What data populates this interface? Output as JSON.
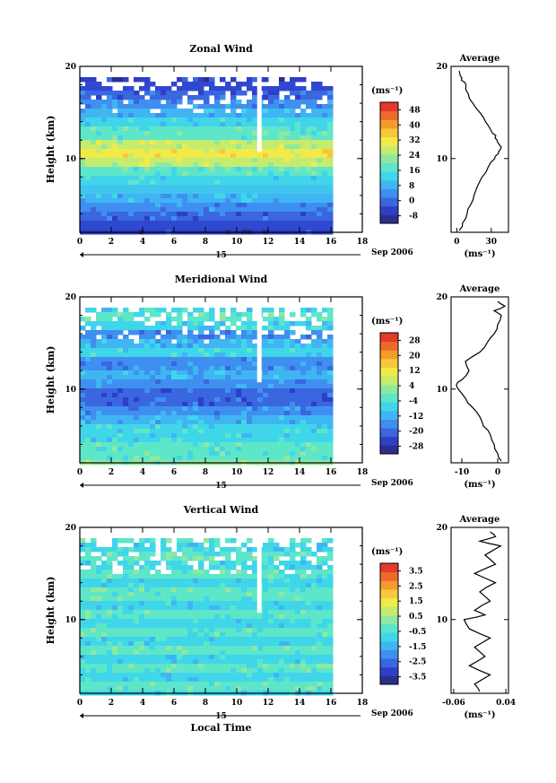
{
  "x_axis_label": "Local Time",
  "date_label": "Sep 2006",
  "date_day": "15",
  "average_title": "Average",
  "unit_label": "(ms⁻¹)",
  "chart_data": [
    {
      "type": "heatmap",
      "title": "Zonal Wind",
      "xlabel": "",
      "ylabel": "Height (km)",
      "xlim": [
        0,
        18
      ],
      "ylim": [
        2,
        20
      ],
      "x_ticks": [
        "0",
        "2",
        "4",
        "6",
        "8",
        "10",
        "12",
        "14",
        "16",
        "18"
      ],
      "y_ticks": [
        "10",
        "20"
      ],
      "data_x_end": 16,
      "colorbar": {
        "label": "(ms⁻¹)",
        "ticks": [
          "48",
          "40",
          "32",
          "24",
          "16",
          "8",
          "0",
          "-8"
        ],
        "range": [
          -12,
          52
        ],
        "colors": [
          "#2b2f8c",
          "#2e3fc7",
          "#3a66e0",
          "#3f8ff0",
          "#3fb6f2",
          "#40d6ea",
          "#5ee6c9",
          "#8fe8a0",
          "#c6ec6f",
          "#f1eb4a",
          "#f7c93a",
          "#f59b2e",
          "#ee6a2a",
          "#e23b2a"
        ]
      },
      "profile_colors": [
        [
          2,
          "#2e3fc7"
        ],
        [
          3,
          "#3048d0"
        ],
        [
          4,
          "#3a66e0"
        ],
        [
          5,
          "#3f8ff0"
        ],
        [
          6,
          "#3fb6f2"
        ],
        [
          7,
          "#40c6ee"
        ],
        [
          8,
          "#40d6ea"
        ],
        [
          9,
          "#5ee6c9"
        ],
        [
          10,
          "#c6ec6f"
        ],
        [
          11,
          "#f1eb4a"
        ],
        [
          12,
          "#c6ec6f"
        ],
        [
          13,
          "#5ee6c9"
        ],
        [
          14,
          "#40d6ea"
        ],
        [
          15,
          "#3fb6f2"
        ],
        [
          16,
          "#3f8ff0"
        ],
        [
          17,
          "#3a66e0"
        ],
        [
          18,
          "#3048d0"
        ],
        [
          19,
          "#2e3fc7"
        ]
      ],
      "average": {
        "xlim": [
          -5,
          45
        ],
        "x_ticks": [
          "0",
          "30"
        ],
        "x_tick_values": [
          0,
          30
        ],
        "unit": "(ms⁻¹)",
        "heights": [
          2.2,
          3,
          4,
          5,
          6,
          7,
          8,
          9,
          10,
          10.5,
          11,
          11.5,
          12,
          12.5,
          13,
          14,
          15,
          16,
          17,
          18,
          18.5,
          19,
          19.5
        ],
        "values": [
          2,
          5,
          9,
          12,
          15,
          18,
          22,
          27,
          33,
          36,
          38,
          37,
          35,
          34,
          30,
          25,
          20,
          14,
          10,
          8,
          4,
          3,
          2
        ]
      }
    },
    {
      "type": "heatmap",
      "title": "Meridional Wind",
      "xlabel": "",
      "ylabel": "Height (km)",
      "xlim": [
        0,
        18
      ],
      "ylim": [
        2,
        20
      ],
      "x_ticks": [
        "0",
        "2",
        "4",
        "6",
        "8",
        "10",
        "12",
        "14",
        "16",
        "18"
      ],
      "y_ticks": [
        "10",
        "20"
      ],
      "data_x_end": 16,
      "colorbar": {
        "label": "(ms⁻¹)",
        "ticks": [
          "28",
          "20",
          "12",
          "4",
          "-4",
          "-12",
          "-20",
          "-28"
        ],
        "range": [
          -32,
          32
        ],
        "colors": [
          "#2b2f8c",
          "#2e3fc7",
          "#3a66e0",
          "#3f8ff0",
          "#3fb6f2",
          "#40d6ea",
          "#5ee6c9",
          "#8fe8a0",
          "#c6ec6f",
          "#f1eb4a",
          "#f7c93a",
          "#f59b2e",
          "#ee6a2a",
          "#e23b2a"
        ]
      },
      "profile_colors": [
        [
          2,
          "#8fe8a0"
        ],
        [
          3,
          "#5ee6c9"
        ],
        [
          4,
          "#5ee6c9"
        ],
        [
          5,
          "#40d6ea"
        ],
        [
          6,
          "#40d6ea"
        ],
        [
          7,
          "#3fb6f2"
        ],
        [
          8,
          "#3f8ff0"
        ],
        [
          9,
          "#3a66e0"
        ],
        [
          10,
          "#3a66e0"
        ],
        [
          11,
          "#3f8ff0"
        ],
        [
          12,
          "#3fb6f2"
        ],
        [
          13,
          "#3f8ff0"
        ],
        [
          14,
          "#40d6ea"
        ],
        [
          15,
          "#3fb6f2"
        ],
        [
          16,
          "#3f8ff0"
        ],
        [
          17,
          "#40d6ea"
        ],
        [
          18,
          "#5ee6c9"
        ],
        [
          19,
          "#40d6ea"
        ]
      ],
      "average": {
        "xlim": [
          -13,
          3
        ],
        "x_ticks": [
          "-10",
          "0"
        ],
        "x_tick_values": [
          -10,
          0
        ],
        "unit": "(ms⁻¹)",
        "heights": [
          2.2,
          3,
          4,
          5,
          6,
          7,
          8,
          9,
          10,
          10.5,
          11,
          12,
          13,
          14,
          15,
          16,
          17,
          18,
          18.5,
          19,
          19.5
        ],
        "values": [
          1,
          0,
          -1,
          -2,
          -4,
          -5,
          -7,
          -9,
          -11,
          -11.5,
          -10,
          -8,
          -9,
          -5,
          -3,
          -1,
          0,
          1,
          -1,
          2,
          0
        ]
      }
    },
    {
      "type": "heatmap",
      "title": "Vertical Wind",
      "xlabel": "Local Time",
      "ylabel": "Height (km)",
      "xlim": [
        0,
        18
      ],
      "ylim": [
        2,
        20
      ],
      "x_ticks": [
        "0",
        "2",
        "4",
        "6",
        "8",
        "10",
        "12",
        "14",
        "16",
        "18"
      ],
      "y_ticks": [
        "10",
        "20"
      ],
      "data_x_end": 16,
      "colorbar": {
        "label": "(ms⁻¹)",
        "ticks": [
          "3.5",
          "2.5",
          "1.5",
          "0.5",
          "-0.5",
          "-1.5",
          "-2.5",
          "-3.5"
        ],
        "range": [
          -4,
          4
        ],
        "colors": [
          "#2b2f8c",
          "#2e3fc7",
          "#3a66e0",
          "#3f8ff0",
          "#3fb6f2",
          "#40d6ea",
          "#5ee6c9",
          "#8fe8a0",
          "#c6ec6f",
          "#f1eb4a",
          "#f7c93a",
          "#f59b2e",
          "#ee6a2a",
          "#e23b2a"
        ]
      },
      "profile_colors": [
        [
          2,
          "#40d6ea"
        ],
        [
          3,
          "#5ee6c9"
        ],
        [
          4,
          "#40d6ea"
        ],
        [
          5,
          "#5ee6c9"
        ],
        [
          6,
          "#40d6ea"
        ],
        [
          7,
          "#5ee6c9"
        ],
        [
          8,
          "#40d6ea"
        ],
        [
          9,
          "#5ee6c9"
        ],
        [
          10,
          "#40d6ea"
        ],
        [
          11,
          "#5ee6c9"
        ],
        [
          12,
          "#40d6ea"
        ],
        [
          13,
          "#5ee6c9"
        ],
        [
          14,
          "#40d6ea"
        ],
        [
          15,
          "#5ee6c9"
        ],
        [
          16,
          "#40d6ea"
        ],
        [
          17,
          "#5ee6c9"
        ],
        [
          18,
          "#40d6ea"
        ],
        [
          19,
          "#5ee6c9"
        ]
      ],
      "average": {
        "xlim": [
          -0.065,
          0.045
        ],
        "x_ticks": [
          "-0.06",
          "0.04"
        ],
        "x_tick_values": [
          -0.06,
          0.04
        ],
        "unit": "(ms⁻¹)",
        "heights": [
          2.2,
          3,
          4,
          5,
          6,
          7,
          8,
          9,
          10,
          10.5,
          11,
          12,
          13,
          14,
          15,
          16,
          17,
          18,
          18.5,
          19,
          19.5
        ],
        "values": [
          -0.01,
          -0.02,
          0.01,
          -0.03,
          0.0,
          -0.02,
          0.01,
          -0.03,
          -0.04,
          0.0,
          -0.02,
          0.01,
          -0.01,
          0.02,
          -0.02,
          0.02,
          0.0,
          0.03,
          -0.01,
          0.02,
          0.01
        ]
      }
    }
  ]
}
